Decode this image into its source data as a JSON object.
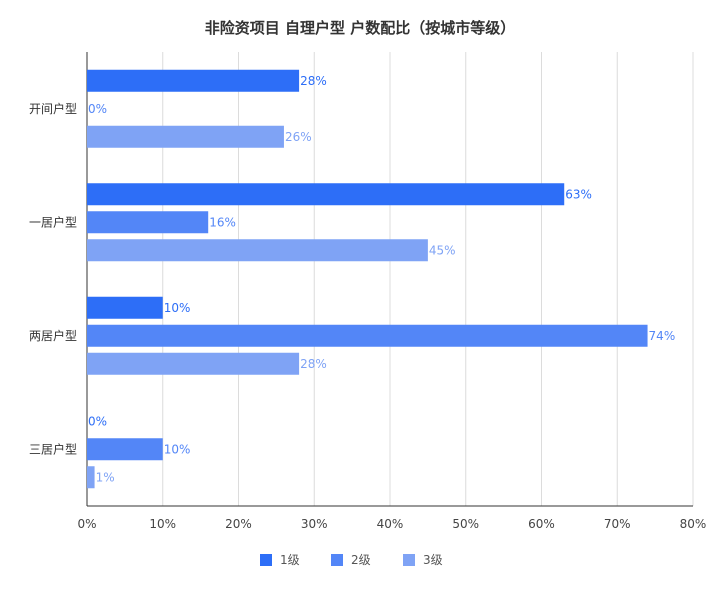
{
  "chart_data": {
    "type": "bar",
    "orientation": "horizontal",
    "title": "非险资项目 自理户型 户数配比（按城市等级）",
    "categories": [
      "开间户型",
      "一居户型",
      "两居户型",
      "三居户型"
    ],
    "series": [
      {
        "name": "1级",
        "color": "#2d6ef7",
        "values": [
          28,
          63,
          10,
          0
        ]
      },
      {
        "name": "2级",
        "color": "#5386f7",
        "values": [
          0,
          16,
          74,
          10
        ]
      },
      {
        "name": "3级",
        "color": "#7fa3f5",
        "values": [
          26,
          45,
          28,
          1
        ]
      }
    ],
    "data_labels": [
      [
        "28%",
        "63%",
        "10%",
        "0%"
      ],
      [
        "0%",
        "16%",
        "74%",
        "10%"
      ],
      [
        "26%",
        "45%",
        "28%",
        "1%"
      ]
    ],
    "xlim": [
      0,
      80
    ],
    "xticks": [
      0,
      10,
      20,
      30,
      40,
      50,
      60,
      70,
      80
    ],
    "xtick_labels": [
      "0%",
      "10%",
      "20%",
      "30%",
      "40%",
      "50%",
      "60%",
      "70%",
      "80%"
    ],
    "grid": true,
    "legend_position": "bottom"
  }
}
